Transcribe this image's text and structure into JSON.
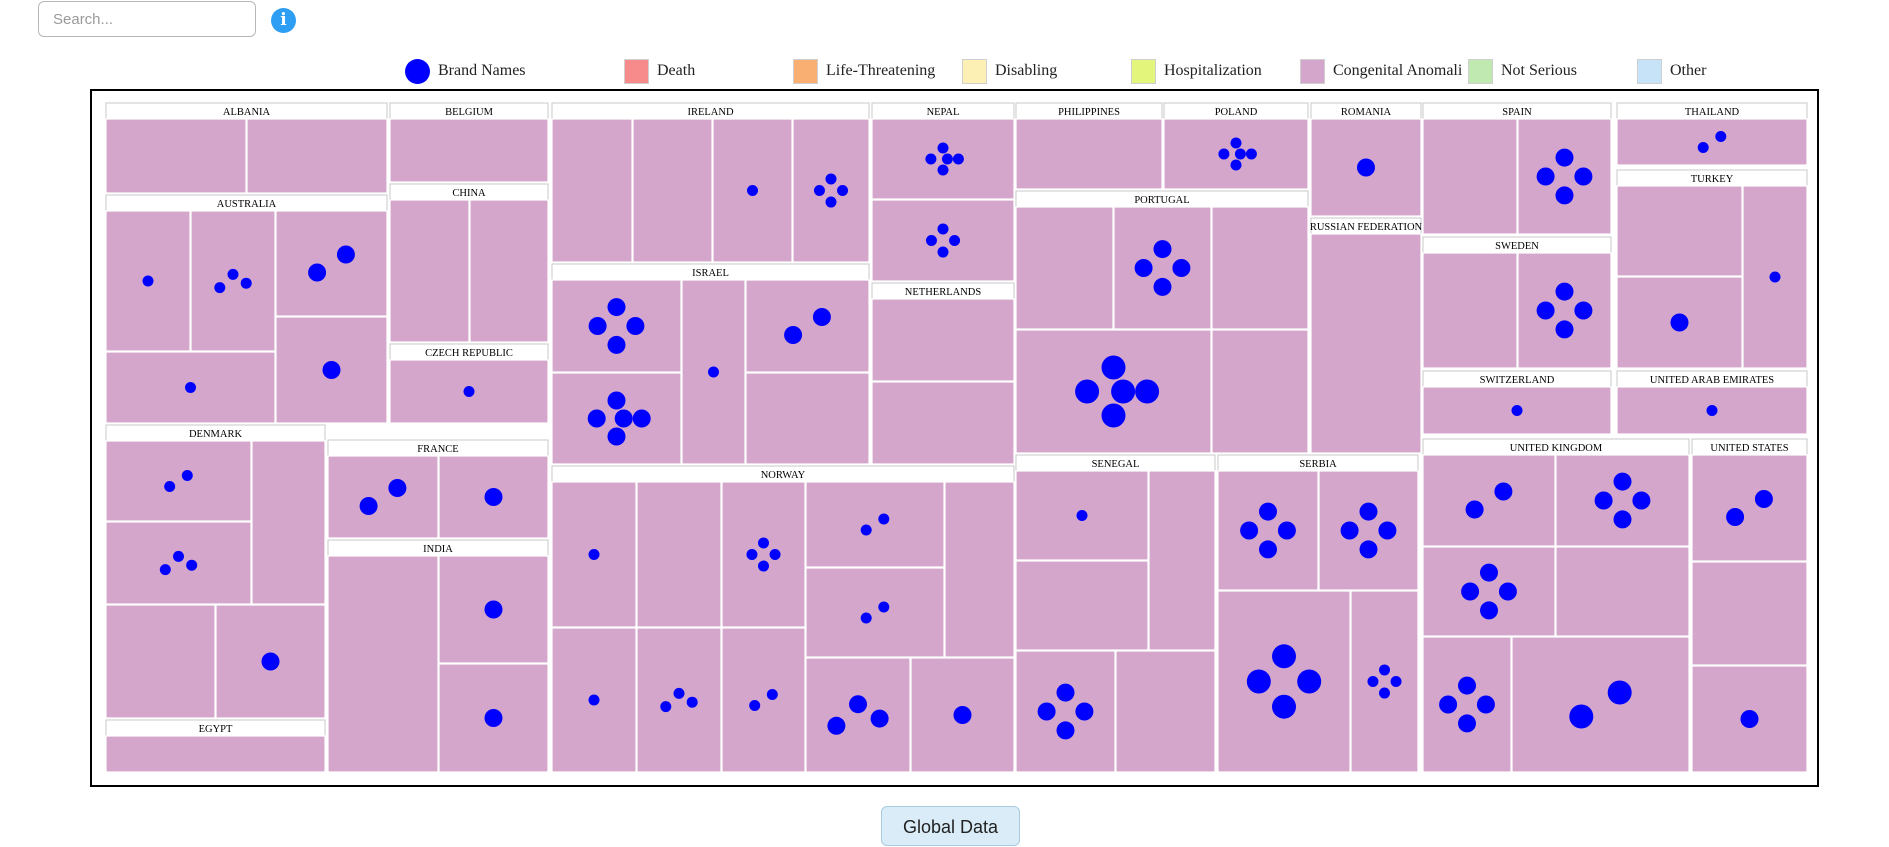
{
  "search": {
    "placeholder": "Search..."
  },
  "info_button": {
    "glyph": "i",
    "icon": "info-icon"
  },
  "legend": {
    "items": [
      {
        "label": "Brand Names",
        "kind": "dot",
        "color": "#0000ff"
      },
      {
        "label": "Death",
        "kind": "swatch",
        "color": "#f78b8b"
      },
      {
        "label": "Life-Threatening",
        "kind": "swatch",
        "color": "#f9ae72"
      },
      {
        "label": "Disabling",
        "kind": "swatch",
        "color": "#fdf0b5"
      },
      {
        "label": "Hospitalization",
        "kind": "swatch",
        "color": "#e3f57a"
      },
      {
        "label": "Congenital Anomali",
        "kind": "swatch",
        "color": "#d5a6cb"
      },
      {
        "label": "Not Serious",
        "kind": "swatch",
        "color": "#c0e9b1"
      },
      {
        "label": "Other",
        "kind": "swatch",
        "color": "#c7e3f8"
      }
    ]
  },
  "chart_data": {
    "type": "treemap",
    "dot_color": "#0000ff",
    "countries": [
      {
        "name": "ALBANIA",
        "cells": [
          [],
          []
        ]
      },
      {
        "name": "AUSTRALIA",
        "cells": [
          [
            1
          ],
          [
            1,
            1,
            1
          ],
          [
            2,
            2
          ],
          [
            1
          ],
          [
            2
          ]
        ]
      },
      {
        "name": "BELGIUM",
        "cells": [
          []
        ]
      },
      {
        "name": "CHINA",
        "cells": [
          [],
          []
        ]
      },
      {
        "name": "CZECH REPUBLIC",
        "cells": [
          [
            1
          ]
        ]
      },
      {
        "name": "DENMARK",
        "cells": [
          [
            1,
            1
          ],
          [],
          [
            1,
            1,
            1
          ],
          [],
          [
            2
          ]
        ]
      },
      {
        "name": "EGYPT",
        "cells": [
          []
        ]
      },
      {
        "name": "FRANCE",
        "cells": [
          [
            2,
            2
          ],
          [
            2
          ]
        ]
      },
      {
        "name": "INDIA",
        "cells": [
          [],
          [
            2
          ],
          [
            2
          ]
        ]
      },
      {
        "name": "IRELAND",
        "cells": [
          [],
          [],
          [
            1
          ],
          [
            1,
            1,
            1,
            1
          ]
        ]
      },
      {
        "name": "ISRAEL",
        "cells": [
          [
            2,
            2,
            2,
            2
          ],
          [
            1
          ],
          [
            2,
            2
          ],
          [
            2,
            2,
            2,
            2,
            2
          ],
          []
        ]
      },
      {
        "name": "NORWAY",
        "cells": [
          [
            1
          ],
          [],
          [
            1,
            1,
            1,
            1
          ],
          [
            1,
            1
          ],
          [],
          [
            1,
            1
          ],
          [
            1
          ],
          [
            1,
            1,
            1
          ],
          [
            1,
            1
          ],
          [
            2,
            2,
            2
          ],
          [
            2
          ]
        ]
      },
      {
        "name": "NEPAL",
        "cells": [
          [
            1,
            1,
            1,
            1,
            1
          ],
          [
            1,
            1,
            1,
            1
          ]
        ]
      },
      {
        "name": "NETHERLANDS",
        "cells": [
          [],
          []
        ]
      },
      {
        "name": "PHILIPPINES",
        "cells": [
          []
        ]
      },
      {
        "name": "POLAND",
        "cells": [
          [
            1,
            1,
            1,
            1,
            1
          ]
        ]
      },
      {
        "name": "PORTUGAL",
        "cells": [
          [],
          [
            2,
            2,
            2,
            2
          ],
          [],
          [
            3,
            3,
            3,
            3,
            3
          ],
          []
        ]
      },
      {
        "name": "ROMANIA",
        "cells": [
          [
            2
          ]
        ]
      },
      {
        "name": "RUSSIAN FEDERATION",
        "cells": [
          []
        ]
      },
      {
        "name": "SENEGAL",
        "cells": [
          [
            1
          ],
          [],
          [],
          [
            2,
            2,
            2,
            2
          ],
          []
        ]
      },
      {
        "name": "SERBIA",
        "cells": [
          [
            2,
            2,
            2,
            2
          ],
          [
            2,
            2,
            2,
            2
          ],
          [
            3,
            3,
            3,
            3
          ],
          [
            1,
            1,
            1,
            1
          ]
        ]
      },
      {
        "name": "SPAIN",
        "cells": [
          [],
          [
            2,
            2,
            2,
            2
          ]
        ]
      },
      {
        "name": "SWEDEN",
        "cells": [
          [],
          [
            2,
            2,
            2,
            2
          ]
        ]
      },
      {
        "name": "SWITZERLAND",
        "cells": [
          [
            1
          ]
        ]
      },
      {
        "name": "THAILAND",
        "cells": [
          [
            1,
            1
          ]
        ]
      },
      {
        "name": "TURKEY",
        "cells": [
          [],
          [
            1
          ],
          [
            2
          ]
        ]
      },
      {
        "name": "UNITED ARAB EMIRATES",
        "cells": [
          [
            1
          ]
        ]
      },
      {
        "name": "UNITED KINGDOM",
        "cells": [
          [
            2,
            2
          ],
          [
            2,
            2,
            2,
            2
          ],
          [
            2,
            2,
            2,
            2
          ],
          [],
          [
            2,
            2,
            2,
            2
          ],
          [
            3,
            3
          ]
        ]
      },
      {
        "name": "UNITED STATES",
        "cells": [
          [
            2,
            2
          ],
          [],
          [
            2
          ]
        ]
      }
    ]
  },
  "global_button": {
    "label": "Global Data"
  }
}
